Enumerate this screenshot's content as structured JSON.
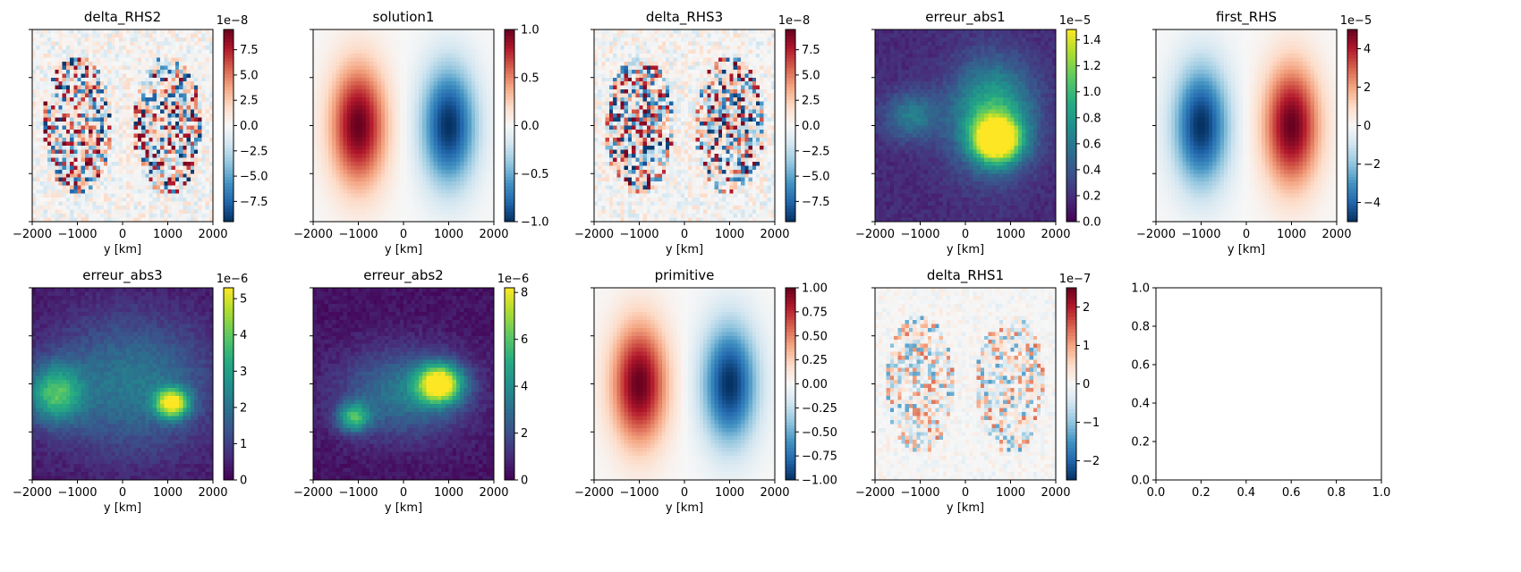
{
  "chart_data": [
    {
      "type": "heatmap",
      "title": "delta_RHS2",
      "xlabel": "y [km]",
      "x_ticks": [
        "−2000",
        "−1000",
        "0",
        "1000",
        "2000"
      ],
      "xlim": [
        -2000,
        2000
      ],
      "pattern": "noise_lobes",
      "colormap": "RdBu_r",
      "colorbar": {
        "ticks": [
          "−7.5",
          "−5.0",
          "−2.5",
          "0.0",
          "2.5",
          "5.0",
          "7.5"
        ],
        "values": [
          -7.5,
          -5.0,
          -2.5,
          0.0,
          2.5,
          5.0,
          7.5
        ],
        "range": [
          -9.5,
          9.5
        ],
        "exponent": "1e−8"
      }
    },
    {
      "type": "heatmap",
      "title": "solution1",
      "xlabel": "y [km]",
      "x_ticks": [
        "−2000",
        "−1000",
        "0",
        "1000",
        "2000"
      ],
      "xlim": [
        -2000,
        2000
      ],
      "pattern": "dipole_pos_left",
      "colormap": "RdBu_r",
      "colorbar": {
        "ticks": [
          "−1.0",
          "−0.5",
          "0.0",
          "0.5",
          "1.0"
        ],
        "values": [
          -1.0,
          -0.5,
          0.0,
          0.5,
          1.0
        ],
        "range": [
          -1.0,
          1.0
        ],
        "exponent": ""
      }
    },
    {
      "type": "heatmap",
      "title": "delta_RHS3",
      "xlabel": "y [km]",
      "x_ticks": [
        "−2000",
        "−1000",
        "0",
        "1000",
        "2000"
      ],
      "xlim": [
        -2000,
        2000
      ],
      "pattern": "noise_lobes",
      "colormap": "RdBu_r",
      "colorbar": {
        "ticks": [
          "−7.5",
          "−5.0",
          "−2.5",
          "0.0",
          "2.5",
          "5.0",
          "7.5"
        ],
        "values": [
          -7.5,
          -5.0,
          -2.5,
          0.0,
          2.5,
          5.0,
          7.5
        ],
        "range": [
          -9.5,
          9.5
        ],
        "exponent": "1e−8"
      }
    },
    {
      "type": "heatmap",
      "title": "erreur_abs1",
      "xlabel": "y [km]",
      "x_ticks": [
        "−2000",
        "−1000",
        "0",
        "1000",
        "2000"
      ],
      "xlim": [
        -2000,
        2000
      ],
      "pattern": "blob_right",
      "colormap": "viridis",
      "colorbar": {
        "ticks": [
          "0.0",
          "0.2",
          "0.4",
          "0.6",
          "0.8",
          "1.0",
          "1.2",
          "1.4"
        ],
        "values": [
          0.0,
          0.2,
          0.4,
          0.6,
          0.8,
          1.0,
          1.2,
          1.4
        ],
        "range": [
          0.0,
          1.48
        ],
        "exponent": "1e−5"
      }
    },
    {
      "type": "heatmap",
      "title": "first_RHS",
      "xlabel": "y [km]",
      "x_ticks": [
        "−2000",
        "−1000",
        "0",
        "1000",
        "2000"
      ],
      "xlim": [
        -2000,
        2000
      ],
      "pattern": "dipole_neg_left",
      "colormap": "RdBu_r",
      "colorbar": {
        "ticks": [
          "−4",
          "−2",
          "0",
          "2",
          "4"
        ],
        "values": [
          -4,
          -2,
          0,
          2,
          4
        ],
        "range": [
          -5,
          5
        ],
        "exponent": "1e−5"
      }
    },
    {
      "type": "heatmap",
      "title": "erreur_abs3",
      "xlabel": "y [km]",
      "x_ticks": [
        "−2000",
        "−1000",
        "0",
        "1000",
        "2000"
      ],
      "xlim": [
        -2000,
        2000
      ],
      "pattern": "blob_two",
      "colormap": "viridis",
      "colorbar": {
        "ticks": [
          "0",
          "1",
          "2",
          "3",
          "4",
          "5"
        ],
        "values": [
          0,
          1,
          2,
          3,
          4,
          5
        ],
        "range": [
          0,
          5.3
        ],
        "exponent": "1e−6"
      }
    },
    {
      "type": "heatmap",
      "title": "erreur_abs2",
      "xlabel": "y [km]",
      "x_ticks": [
        "−2000",
        "−1000",
        "0",
        "1000",
        "2000"
      ],
      "xlim": [
        -2000,
        2000
      ],
      "pattern": "blob_center",
      "colormap": "viridis",
      "colorbar": {
        "ticks": [
          "0",
          "2",
          "4",
          "6",
          "8"
        ],
        "values": [
          0,
          2,
          4,
          6,
          8
        ],
        "range": [
          0,
          8.2
        ],
        "exponent": "1e−6"
      }
    },
    {
      "type": "heatmap",
      "title": "primitive",
      "xlabel": "y [km]",
      "x_ticks": [
        "−2000",
        "−1000",
        "0",
        "1000",
        "2000"
      ],
      "xlim": [
        -2000,
        2000
      ],
      "pattern": "dipole_pos_left",
      "colormap": "RdBu_r",
      "colorbar": {
        "ticks": [
          "−1.00",
          "−0.75",
          "−0.50",
          "−0.25",
          "0.00",
          "0.25",
          "0.50",
          "0.75",
          "1.00"
        ],
        "values": [
          -1.0,
          -0.75,
          -0.5,
          -0.25,
          0.0,
          0.25,
          0.5,
          0.75,
          1.0
        ],
        "range": [
          -1.0,
          1.0
        ],
        "exponent": ""
      }
    },
    {
      "type": "heatmap",
      "title": "delta_RHS1",
      "xlabel": "y [km]",
      "x_ticks": [
        "−2000",
        "−1000",
        "0",
        "1000",
        "2000"
      ],
      "xlim": [
        -2000,
        2000
      ],
      "pattern": "noise_faint",
      "colormap": "RdBu_r",
      "colorbar": {
        "ticks": [
          "−2",
          "−1",
          "0",
          "1",
          "2"
        ],
        "values": [
          -2,
          -1,
          0,
          1,
          2
        ],
        "range": [
          -2.5,
          2.5
        ],
        "exponent": "1e−7"
      }
    },
    {
      "type": "line",
      "title": "",
      "xlabel": "",
      "x_ticks": [
        "0.0",
        "0.2",
        "0.4",
        "0.6",
        "0.8",
        "1.0"
      ],
      "y_ticks": [
        "0.0",
        "0.2",
        "0.4",
        "0.6",
        "0.8",
        "1.0"
      ],
      "xlim": [
        0,
        1
      ],
      "ylim": [
        0,
        1
      ],
      "series": []
    }
  ]
}
